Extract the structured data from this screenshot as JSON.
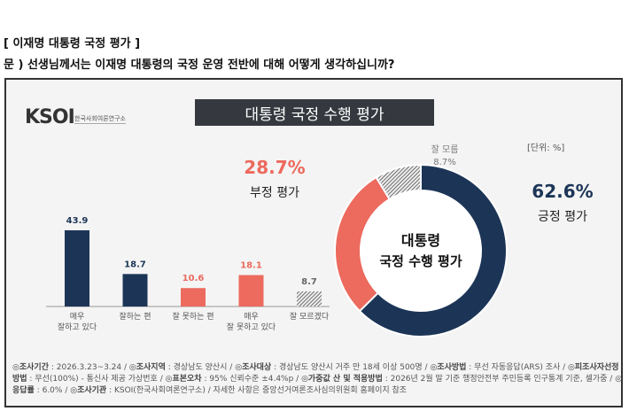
{
  "header": {
    "title": "[ 이재명 대통령 국정 평가 ]",
    "question": "문 )  선생님께서는 이재명 대통령의 국정 운영 전반에 대해 어떻게 생각하십니까?"
  },
  "logo": {
    "text": "KSOI",
    "sub": "한국사회여론연구소"
  },
  "chart_title": "대통령 국정 수행 평가",
  "unit": "[단위: %]",
  "colors": {
    "navy": "#1c3557",
    "red": "#ec6a5e",
    "gray": "#bbbbbb"
  },
  "chart_data": [
    {
      "type": "bar",
      "categories": [
        "매우\n잘하고 있다",
        "잘하는 편",
        "잘 못하는 편",
        "매우\n잘 못하고 있다",
        "잘 모르겠다"
      ],
      "category_lines": [
        [
          "매우",
          "잘하고 있다"
        ],
        [
          "잘하는 편"
        ],
        [
          "잘 못하는 편"
        ],
        [
          "매우",
          "잘 못하고 있다"
        ],
        [
          "잘 모르겠다"
        ]
      ],
      "values": [
        43.9,
        18.7,
        10.6,
        18.1,
        8.7
      ],
      "value_labels": [
        "43.9",
        "18.7",
        "10.6",
        "18.1",
        "8.7"
      ],
      "colors": [
        "navy",
        "navy",
        "red",
        "red",
        "gray"
      ]
    },
    {
      "type": "pie",
      "center_label": [
        "대통령",
        "국정 수행 평가"
      ],
      "slices": [
        {
          "label": "긍정 평가",
          "value": 62.6,
          "value_label": "62.6%",
          "color": "navy"
        },
        {
          "label": "부정 평가",
          "value": 28.7,
          "value_label": "28.7%",
          "color": "red"
        },
        {
          "label": "잘 모름",
          "value": 8.7,
          "value_label": "8.7%",
          "color": "gray"
        }
      ]
    }
  ],
  "notes": [
    [
      [
        "◎조사기간",
        "2026.3.23~3.24"
      ],
      [
        "◎조사지역",
        "경상남도 양산시"
      ],
      [
        "◎조사대상",
        "경상남도 양산시 거주 만 18세 이상 500명"
      ],
      [
        "◎조사방법",
        "무선 자동응답(ARS) 조사"
      ]
    ],
    [
      [
        "◎피조사자선정방법",
        "무선(100%) - 통신사 제공 가상번호"
      ],
      [
        "◎표본오차",
        "95% 신뢰수준 ±4.4%p"
      ],
      [
        "◎가중값 산 및 적용방법",
        "2026년 2월 말 기준 행정안전부 주민등록 인구통계 기준, 셀가중"
      ],
      [
        "◎응답률",
        "6.0%"
      ],
      [
        "◎조사기관",
        "KSOI(한국사회여론연구소)"
      ]
    ]
  ],
  "notes_tail": "자세한 사항은 중앙선거여론조사심의위원회 홈페이지 참조"
}
